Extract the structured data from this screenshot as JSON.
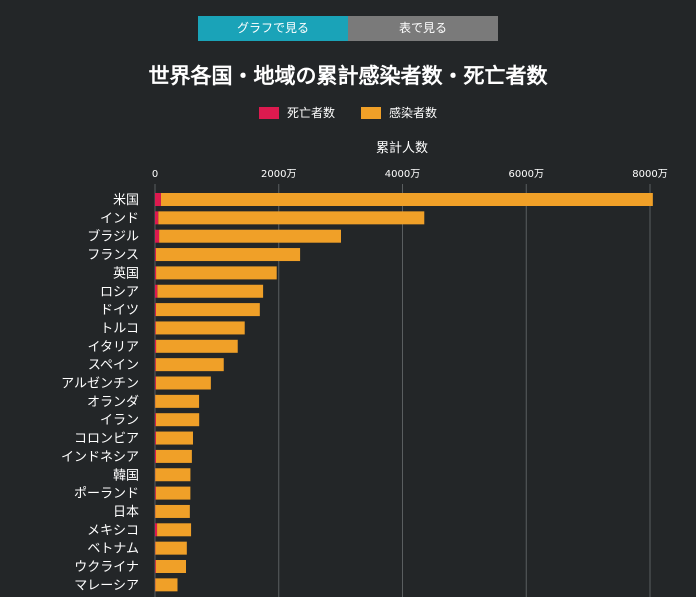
{
  "tabs": {
    "graph_label": "グラフで見る",
    "table_label": "表で見る"
  },
  "title": "世界各国・地域の累計感染者数・死亡者数",
  "legend": {
    "deaths_label": "死亡者数",
    "cases_label": "感染者数"
  },
  "colors": {
    "deaths": "#dc1a4f",
    "cases": "#f0a028",
    "background": "#232628",
    "tab_active": "#1aa3b8",
    "tab_inactive": "#7a7a7a"
  },
  "chart_data": {
    "type": "bar",
    "orientation": "horizontal",
    "stacked": true,
    "xlabel": "累計人数",
    "xlim": [
      0,
      80000000
    ],
    "xticks": [
      0,
      20000000,
      40000000,
      60000000,
      80000000
    ],
    "xtick_labels": [
      "0",
      "2000万",
      "4000万",
      "6000万",
      "8000万"
    ],
    "grid": true,
    "legend_position": "top",
    "categories": [
      "米国",
      "インド",
      "ブラジル",
      "フランス",
      "英国",
      "ロシア",
      "ドイツ",
      "トルコ",
      "イタリア",
      "スペイン",
      "アルゼンチン",
      "オランダ",
      "イラン",
      "コロンビア",
      "インドネシア",
      "韓国",
      "ポーランド",
      "日本",
      "メキシコ",
      "ベトナム",
      "ウクライナ",
      "マレーシア"
    ],
    "series": [
      {
        "name": "死亡者数",
        "values": [
          960000,
          520000,
          660000,
          150000,
          170000,
          370000,
          140000,
          100000,
          170000,
          110000,
          130000,
          22000,
          140000,
          140000,
          160000,
          24000,
          116000,
          30000,
          330000,
          43000,
          110000,
          36000
        ]
      },
      {
        "name": "感染者数",
        "values": [
          79500000,
          43000000,
          29400000,
          23300000,
          19500000,
          17100000,
          16800000,
          14400000,
          13200000,
          11000000,
          8900000,
          7100000,
          7000000,
          6000000,
          5800000,
          5700000,
          5600000,
          5600000,
          5500000,
          5100000,
          4900000,
          3600000
        ]
      }
    ]
  }
}
